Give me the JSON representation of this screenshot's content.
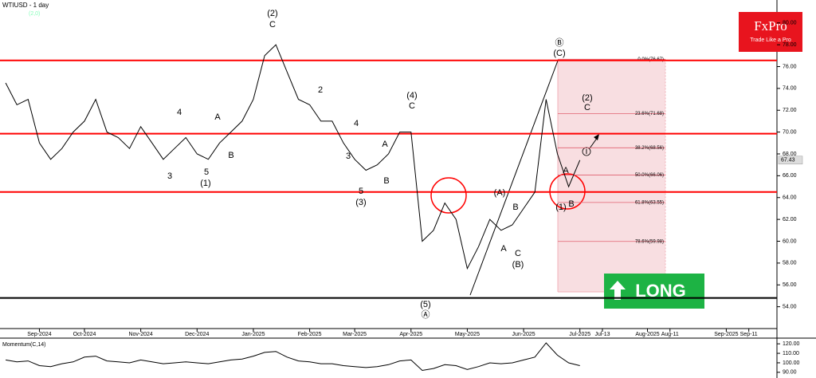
{
  "header": {
    "symbol": "WTIUSD - 1 day",
    "sub": "(2,0)"
  },
  "logo": {
    "name": "FxPro",
    "tagline": "Trade Like a Pro"
  },
  "signal": "LONG",
  "annotations": [
    "(2)",
    "C",
    "2",
    "4",
    "4",
    "A",
    "B",
    "A",
    "B",
    "3",
    "3",
    "5",
    "(1)",
    "5",
    "(3)",
    "(4)",
    "C",
    "(5)",
    "Ⓐ",
    "(A)",
    "B",
    "A",
    "C",
    "(B)",
    "Ⓑ",
    "(C)",
    "(2)",
    "C",
    "A",
    "(1)",
    "B",
    "i"
  ],
  "chart_data": [
    {
      "type": "line",
      "categories": [
        null,
        null,
        null,
        "Sep-2024",
        null,
        null,
        null,
        "Oct-2024",
        null,
        null,
        null,
        null,
        "Nov-2024",
        null,
        null,
        null,
        null,
        "Dec-2024",
        null,
        null,
        null,
        null,
        "Jan-2025",
        null,
        null,
        null,
        null,
        "Feb-2025",
        null,
        null,
        null,
        "Mar-2025",
        null,
        null,
        null,
        null,
        "Apr-2025",
        null,
        null,
        null,
        null,
        "May-2025",
        null,
        null,
        null,
        null,
        "Jun-2025",
        null,
        null,
        null,
        null,
        "Jul-2025",
        null,
        "Jul-13",
        null,
        null,
        null,
        "Aug-2025",
        null,
        "Aug-11",
        null,
        null,
        null,
        null,
        "Sep-2025",
        null,
        "Sep-11",
        null,
        null
      ],
      "series": [
        {
          "name": "WTIUSD",
          "color": "#000000",
          "values": [
            74.5,
            72.5,
            73,
            69,
            67.5,
            68.5,
            70,
            71,
            73,
            70,
            69.5,
            68.5,
            70.5,
            69,
            67.5,
            68.5,
            69.5,
            68,
            67.5,
            69,
            70,
            71,
            73,
            77,
            78,
            75.5,
            73,
            72.5,
            71,
            71,
            69,
            67.5,
            66.5,
            67,
            68,
            70,
            70,
            60,
            61,
            63.5,
            62,
            57.5,
            59.5,
            62,
            61,
            61.5,
            63,
            64.5,
            73,
            68,
            65,
            67.43,
            null,
            null,
            null,
            null,
            null,
            null,
            null,
            null,
            null,
            null,
            null,
            null,
            null,
            null,
            null,
            null,
            null
          ]
        }
      ],
      "ylim": [
        52,
        82.1
      ],
      "yticks": [
        {
          "value": 80,
          "label": "80.00"
        },
        {
          "value": 78,
          "label": "78.00"
        },
        {
          "value": 76,
          "label": "76.00"
        },
        {
          "value": 74,
          "label": "74.00"
        },
        {
          "value": 72,
          "label": "72.00"
        },
        {
          "value": 70,
          "label": "70.00"
        },
        {
          "value": 68,
          "label": "68.00"
        },
        {
          "value": 66,
          "label": "66.00"
        },
        {
          "value": 64,
          "label": "64.00"
        },
        {
          "value": 62,
          "label": "62.00"
        },
        {
          "value": 60,
          "label": "60.00"
        },
        {
          "value": 58,
          "label": "58.00"
        },
        {
          "value": 56,
          "label": "56.00"
        },
        {
          "value": 54,
          "label": "54.00"
        }
      ],
      "levels": [
        {
          "value": 76.57,
          "color": "#ff0000"
        },
        {
          "value": 69.85,
          "color": "#ff0000"
        },
        {
          "value": 64.51,
          "color": "#ff0000"
        },
        {
          "value": 54.8,
          "color": "#000000"
        }
      ],
      "fib": [
        {
          "value": 76.67,
          "label": "0.0%(76.67)"
        },
        {
          "value": 71.68,
          "label": "23.6%(71.68)"
        },
        {
          "value": 68.56,
          "label": "38.2%(68.56)"
        },
        {
          "value": 66.06,
          "label": "50.0%(66.06)"
        },
        {
          "value": 63.55,
          "label": "61.8%(63.55)"
        },
        {
          "value": 59.98,
          "label": "78.6%(59.98)"
        }
      ]
    },
    {
      "type": "line",
      "title": "Momentum(C,14)",
      "series": [
        {
          "name": "Momentum",
          "color": "#000000",
          "values": [
            103,
            101,
            102,
            97,
            96,
            99,
            101,
            106,
            107,
            102,
            101,
            100,
            103,
            101,
            99,
            100,
            101,
            100,
            99,
            101,
            103,
            104,
            107,
            111,
            112,
            106,
            102,
            101,
            99,
            99,
            97,
            96,
            95,
            96,
            98,
            102,
            103,
            92,
            94,
            98,
            97,
            93,
            96,
            100,
            99,
            100,
            103,
            106,
            121,
            108,
            100,
            97,
            null,
            null,
            null,
            null,
            null,
            null,
            null,
            null,
            null,
            null,
            null,
            null,
            null,
            null,
            null,
            null,
            null
          ]
        }
      ],
      "ylim": [
        84,
        126
      ],
      "yticks": [
        {
          "value": 120,
          "label": "120.00"
        },
        {
          "value": 110,
          "label": "110.00"
        },
        {
          "value": 100,
          "label": "100.00"
        },
        {
          "value": 90,
          "label": "90.00"
        }
      ]
    }
  ]
}
